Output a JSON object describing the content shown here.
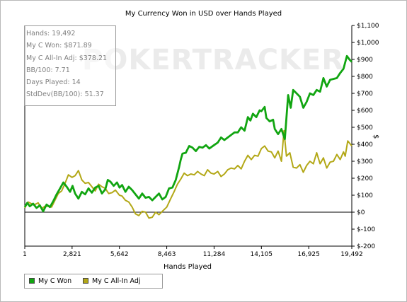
{
  "chart_data": {
    "type": "line",
    "title": "My Currency Won in USD over Hands Played",
    "xlabel": "Hands Played",
    "ylabel": "$",
    "xlim": [
      1,
      19492
    ],
    "ylim": [
      -200,
      1100
    ],
    "x_ticks": [
      1,
      2821,
      5642,
      8463,
      11284,
      14105,
      16925,
      19492
    ],
    "x_tick_labels": [
      "1",
      "2,821",
      "5,642",
      "8,463",
      "11,284",
      "14,105",
      "16,925",
      "19,492"
    ],
    "y_ticks": [
      -200,
      -100,
      0,
      100,
      200,
      300,
      400,
      500,
      600,
      700,
      800,
      900,
      1000,
      1100
    ],
    "y_tick_labels": [
      "$-200",
      "$-100",
      "$0",
      "$100",
      "$200",
      "$300",
      "$400",
      "$500",
      "$600",
      "$700",
      "$800",
      "$900",
      "$1,000",
      "$1,100"
    ],
    "y_axis_side": "right",
    "legend_position": "bottom-left",
    "series": [
      {
        "name": "My C Won",
        "color": "#11a511",
        "points": [
          [
            1,
            30
          ],
          [
            150,
            55
          ],
          [
            300,
            35
          ],
          [
            500,
            50
          ],
          [
            700,
            25
          ],
          [
            900,
            40
          ],
          [
            1100,
            5
          ],
          [
            1300,
            45
          ],
          [
            1500,
            30
          ],
          [
            1700,
            65
          ],
          [
            1900,
            105
          ],
          [
            2100,
            140
          ],
          [
            2300,
            175
          ],
          [
            2500,
            150
          ],
          [
            2700,
            120
          ],
          [
            2850,
            155
          ],
          [
            3000,
            110
          ],
          [
            3200,
            80
          ],
          [
            3400,
            120
          ],
          [
            3600,
            105
          ],
          [
            3800,
            140
          ],
          [
            4000,
            115
          ],
          [
            4200,
            145
          ],
          [
            4400,
            155
          ],
          [
            4600,
            110
          ],
          [
            4800,
            135
          ],
          [
            4950,
            190
          ],
          [
            5100,
            180
          ],
          [
            5300,
            155
          ],
          [
            5500,
            175
          ],
          [
            5650,
            145
          ],
          [
            5800,
            160
          ],
          [
            6000,
            120
          ],
          [
            6200,
            150
          ],
          [
            6400,
            130
          ],
          [
            6600,
            105
          ],
          [
            6800,
            80
          ],
          [
            7000,
            110
          ],
          [
            7200,
            85
          ],
          [
            7400,
            90
          ],
          [
            7600,
            70
          ],
          [
            7800,
            90
          ],
          [
            8000,
            110
          ],
          [
            8200,
            75
          ],
          [
            8400,
            90
          ],
          [
            8600,
            140
          ],
          [
            8800,
            145
          ],
          [
            9000,
            190
          ],
          [
            9200,
            265
          ],
          [
            9300,
            310
          ],
          [
            9400,
            345
          ],
          [
            9600,
            350
          ],
          [
            9800,
            390
          ],
          [
            10000,
            380
          ],
          [
            10200,
            360
          ],
          [
            10400,
            385
          ],
          [
            10600,
            380
          ],
          [
            10800,
            395
          ],
          [
            11000,
            375
          ],
          [
            11284,
            395
          ],
          [
            11500,
            410
          ],
          [
            11700,
            440
          ],
          [
            11900,
            425
          ],
          [
            12100,
            440
          ],
          [
            12300,
            455
          ],
          [
            12500,
            470
          ],
          [
            12700,
            470
          ],
          [
            12900,
            500
          ],
          [
            13100,
            480
          ],
          [
            13300,
            560
          ],
          [
            13450,
            540
          ],
          [
            13600,
            580
          ],
          [
            13800,
            560
          ],
          [
            14000,
            600
          ],
          [
            14105,
            595
          ],
          [
            14300,
            620
          ],
          [
            14400,
            555
          ],
          [
            14600,
            535
          ],
          [
            14800,
            545
          ],
          [
            14900,
            490
          ],
          [
            15100,
            460
          ],
          [
            15300,
            490
          ],
          [
            15500,
            430
          ],
          [
            15700,
            690
          ],
          [
            15850,
            615
          ],
          [
            16000,
            720
          ],
          [
            16200,
            700
          ],
          [
            16400,
            680
          ],
          [
            16600,
            615
          ],
          [
            16800,
            650
          ],
          [
            17000,
            700
          ],
          [
            17200,
            690
          ],
          [
            17400,
            720
          ],
          [
            17600,
            710
          ],
          [
            17800,
            790
          ],
          [
            18000,
            740
          ],
          [
            18200,
            780
          ],
          [
            18400,
            785
          ],
          [
            18600,
            790
          ],
          [
            18800,
            820
          ],
          [
            19000,
            845
          ],
          [
            19200,
            920
          ],
          [
            19350,
            900
          ],
          [
            19492,
            885
          ]
        ]
      },
      {
        "name": "My C All-In Adj",
        "color": "#b3a817",
        "points": [
          [
            1,
            25
          ],
          [
            200,
            60
          ],
          [
            400,
            50
          ],
          [
            600,
            45
          ],
          [
            800,
            55
          ],
          [
            1000,
            20
          ],
          [
            1200,
            35
          ],
          [
            1400,
            35
          ],
          [
            1600,
            30
          ],
          [
            1800,
            70
          ],
          [
            2000,
            110
          ],
          [
            2200,
            125
          ],
          [
            2400,
            170
          ],
          [
            2600,
            220
          ],
          [
            2821,
            205
          ],
          [
            3000,
            215
          ],
          [
            3200,
            245
          ],
          [
            3400,
            190
          ],
          [
            3600,
            170
          ],
          [
            3800,
            175
          ],
          [
            4000,
            150
          ],
          [
            4200,
            125
          ],
          [
            4400,
            165
          ],
          [
            4600,
            150
          ],
          [
            4800,
            140
          ],
          [
            5000,
            110
          ],
          [
            5200,
            115
          ],
          [
            5400,
            130
          ],
          [
            5642,
            100
          ],
          [
            5800,
            95
          ],
          [
            6000,
            70
          ],
          [
            6200,
            60
          ],
          [
            6400,
            30
          ],
          [
            6600,
            -10
          ],
          [
            6800,
            -20
          ],
          [
            7000,
            5
          ],
          [
            7200,
            0
          ],
          [
            7400,
            -35
          ],
          [
            7600,
            -30
          ],
          [
            7800,
            0
          ],
          [
            8000,
            -15
          ],
          [
            8200,
            5
          ],
          [
            8463,
            30
          ],
          [
            8700,
            80
          ],
          [
            8900,
            120
          ],
          [
            9100,
            165
          ],
          [
            9300,
            195
          ],
          [
            9500,
            230
          ],
          [
            9700,
            215
          ],
          [
            9900,
            225
          ],
          [
            10100,
            220
          ],
          [
            10300,
            240
          ],
          [
            10500,
            225
          ],
          [
            10700,
            215
          ],
          [
            10900,
            250
          ],
          [
            11100,
            230
          ],
          [
            11284,
            225
          ],
          [
            11500,
            240
          ],
          [
            11700,
            210
          ],
          [
            11900,
            225
          ],
          [
            12100,
            250
          ],
          [
            12300,
            260
          ],
          [
            12500,
            255
          ],
          [
            12700,
            275
          ],
          [
            12900,
            255
          ],
          [
            13100,
            300
          ],
          [
            13300,
            335
          ],
          [
            13500,
            310
          ],
          [
            13700,
            335
          ],
          [
            13900,
            330
          ],
          [
            14105,
            375
          ],
          [
            14300,
            390
          ],
          [
            14500,
            360
          ],
          [
            14700,
            355
          ],
          [
            14900,
            320
          ],
          [
            15100,
            360
          ],
          [
            15300,
            300
          ],
          [
            15450,
            480
          ],
          [
            15600,
            330
          ],
          [
            15800,
            350
          ],
          [
            16000,
            265
          ],
          [
            16200,
            260
          ],
          [
            16400,
            280
          ],
          [
            16600,
            235
          ],
          [
            16800,
            275
          ],
          [
            17000,
            300
          ],
          [
            17200,
            285
          ],
          [
            17400,
            350
          ],
          [
            17600,
            285
          ],
          [
            17800,
            320
          ],
          [
            18000,
            260
          ],
          [
            18200,
            295
          ],
          [
            18400,
            300
          ],
          [
            18600,
            340
          ],
          [
            18800,
            310
          ],
          [
            19000,
            355
          ],
          [
            19100,
            330
          ],
          [
            19250,
            420
          ],
          [
            19492,
            390
          ]
        ]
      }
    ]
  },
  "stats": [
    "Hands: 19,492",
    "My C Won: $871.89",
    "My C All-In Adj: $378.21",
    "BB/100: 7.71",
    "Days Played: 14",
    "StdDev(BB/100): 51.37"
  ],
  "watermark": "POKERTRACKER",
  "colors": {
    "zero_line": "#000000",
    "frame_border": "#b9b9b9",
    "box_border": "#9a9a9a",
    "stats_text": "#7f7f7f"
  }
}
